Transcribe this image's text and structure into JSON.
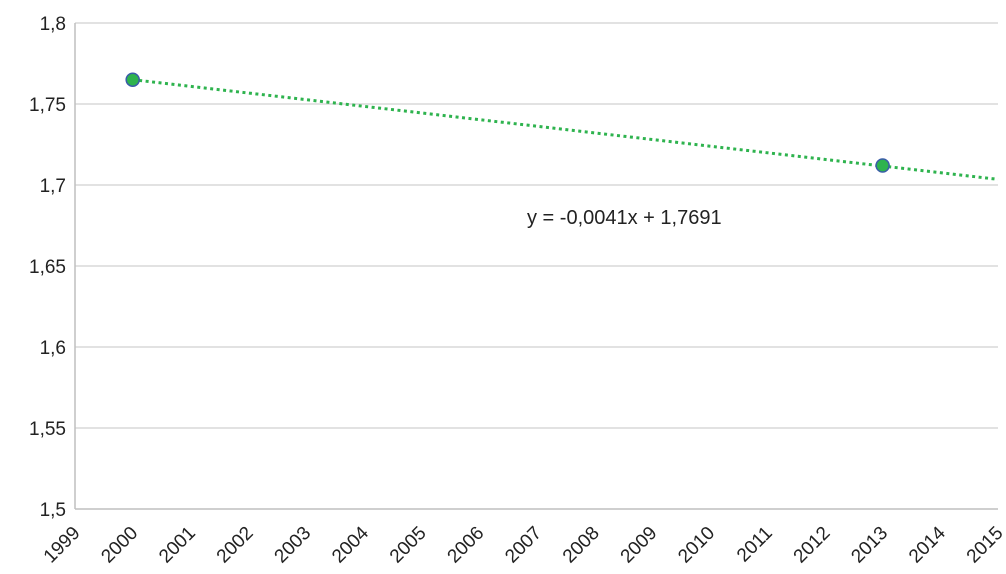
{
  "chart_data": {
    "type": "scatter",
    "series": [
      {
        "x": [
          2000,
          2013
        ],
        "y": [
          1.765,
          1.712
        ]
      }
    ],
    "trendline": {
      "type": "linear",
      "x_range": [
        2000,
        2015
      ],
      "y_start": 1.765,
      "slope": -0.0041,
      "label": "y = -0,0041x + 1,7691"
    },
    "xlim": [
      1999,
      2015
    ],
    "ylim": [
      1.5,
      1.8
    ],
    "x_ticks": [
      1999,
      2000,
      2001,
      2002,
      2003,
      2004,
      2005,
      2006,
      2007,
      2008,
      2009,
      2010,
      2011,
      2012,
      2013,
      2014,
      2015
    ],
    "y_ticks": [
      1.5,
      1.55,
      1.6,
      1.65,
      1.7,
      1.75,
      1.8
    ],
    "y_tick_labels": [
      "1,5",
      "1,55",
      "1,6",
      "1,65",
      "1,7",
      "1,75",
      "1,8"
    ],
    "x_tick_rotation": -45,
    "grid": {
      "horizontal": true,
      "vertical": false
    },
    "colors": {
      "marker_fill": "#2eb34e",
      "marker_stroke": "#3a5ca8",
      "trendline": "#2eb34e",
      "grid": "#d9d9d9",
      "axis": "#bfbfbf"
    }
  }
}
